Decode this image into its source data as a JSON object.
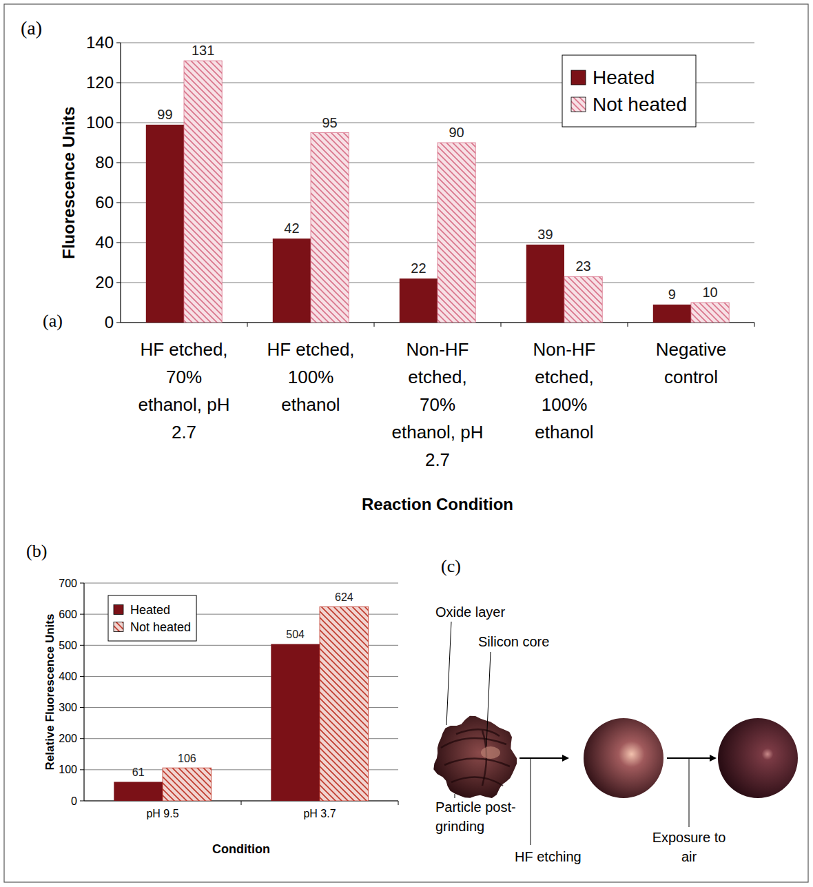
{
  "chart_data": [
    {
      "type": "bar",
      "panel": "(a)",
      "annotations": [
        "(a)"
      ],
      "x_label": "Reaction Condition",
      "y_label": "Fluorescence Units",
      "categories": [
        "HF etched, 70% ethanol, pH 2.7",
        "HF etched, 100% ethanol",
        "Non-HF etched, 70% ethanol, pH 2.7",
        "Non-HF etched, 100% ethanol",
        "Negative control"
      ],
      "series": [
        {
          "name": "Heated",
          "color": "#7b1117",
          "values": [
            99,
            42,
            22,
            39,
            9
          ]
        },
        {
          "name": "Not heated",
          "color": "#d9738a",
          "line_style": "hatched",
          "values": [
            131,
            95,
            90,
            23,
            10
          ]
        }
      ],
      "ylim": [
        0,
        140
      ],
      "yticks": [
        0,
        20,
        40,
        60,
        80,
        100,
        120,
        140
      ],
      "grid": true,
      "legend": "upper right",
      "data_labels": true
    },
    {
      "type": "bar",
      "panel": "(b)",
      "x_label": "Condition",
      "y_label": "Relative Fluorescence Units",
      "categories": [
        "pH 9.5",
        "pH 3.7"
      ],
      "series": [
        {
          "name": "Heated",
          "color": "#7b1117",
          "values": [
            61,
            504
          ]
        },
        {
          "name": "Not heated",
          "color": "#c0392b",
          "line_style": "hatched",
          "values": [
            106,
            624
          ]
        }
      ],
      "ylim": [
        0,
        700
      ],
      "yticks": [
        0,
        100,
        200,
        300,
        400,
        500,
        600,
        700
      ],
      "grid": true,
      "legend": "upper left",
      "data_labels": true
    }
  ],
  "diagram": {
    "panel": "(c)",
    "callouts": [
      "Oxide layer",
      "Silicon core"
    ],
    "stage_label": "Particle post-grinding",
    "arrows": [
      "HF etching",
      "Exposure to air"
    ]
  }
}
